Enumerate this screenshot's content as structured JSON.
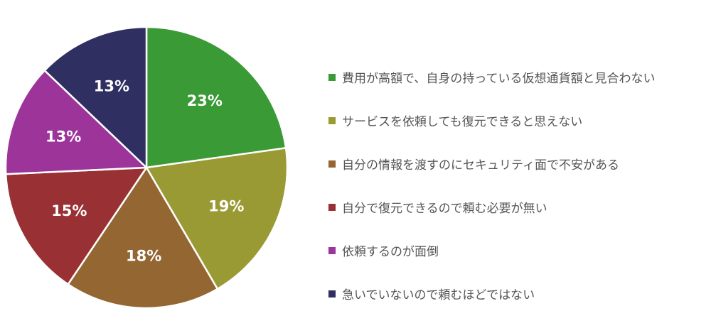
{
  "chart_data": {
    "type": "pie",
    "title": "",
    "categories": [
      "費用が高額で、自身の持っている仮想通貨額と見合わない",
      "サービスを依頼しても復元できると思えない",
      "自分の情報を渡すのにセキュリティ面で不安がある",
      "自分で復元できるので頼む必要が無い",
      "依頼するのが面倒",
      "急いでいないので頼むほどではない"
    ],
    "values": [
      23,
      19,
      18,
      15,
      13,
      13
    ],
    "value_labels": [
      "23%",
      "19%",
      "18%",
      "15%",
      "13%",
      "13%"
    ],
    "colors": [
      "#3a9a35",
      "#9a9a35",
      "#936632",
      "#993034",
      "#9c349a",
      "#2f2f62"
    ],
    "start": "top",
    "direction": "clockwise",
    "legend_position": "right"
  }
}
